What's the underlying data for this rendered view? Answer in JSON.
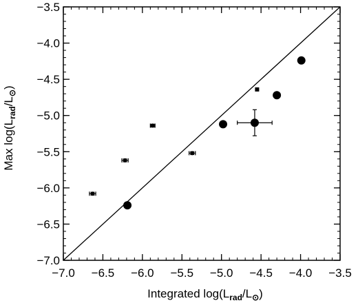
{
  "chart_data": {
    "type": "scatter",
    "xlabel": {
      "prefix": "Integrated log(L",
      "sub": "rad",
      "mid": "/L",
      "sun": "⊙",
      "suffix": ")"
    },
    "ylabel": {
      "prefix": "Max log(L",
      "sub": "rad",
      "mid": "/L",
      "sun": "⊙",
      "suffix": ")"
    },
    "xlim": [
      -7.0,
      -3.5
    ],
    "ylim": [
      -7.0,
      -3.5
    ],
    "x_ticks": [
      -7.0,
      -6.5,
      -6.0,
      -5.5,
      -5.0,
      -4.5,
      -4.0,
      -3.5
    ],
    "y_ticks": [
      -7.0,
      -6.5,
      -6.0,
      -5.5,
      -5.0,
      -4.5,
      -4.0,
      -3.5
    ],
    "x_tick_labels": [
      "−7.0",
      "−6.5",
      "−6.0",
      "−5.5",
      "−5.0",
      "−4.5",
      "−4.0",
      "−3.5"
    ],
    "y_tick_labels": [
      "−7.0",
      "−6.5",
      "−6.0",
      "−5.5",
      "−5.0",
      "−4.5",
      "−4.0",
      "−3.5"
    ],
    "grid": false,
    "reference_line": {
      "x": [
        -7.0,
        -3.5
      ],
      "y": [
        -7.0,
        -3.5
      ]
    },
    "points": [
      {
        "x": -6.63,
        "y": -6.08,
        "marker": "small",
        "xerr": 0.04,
        "yerr": 0.02
      },
      {
        "x": -6.22,
        "y": -5.62,
        "marker": "small",
        "xerr": 0.04,
        "yerr": 0.02
      },
      {
        "x": -5.87,
        "y": -5.14,
        "marker": "small",
        "xerr": 0.03,
        "yerr": 0.02
      },
      {
        "x": -5.37,
        "y": -5.52,
        "marker": "small",
        "xerr": 0.04,
        "yerr": 0.02
      },
      {
        "x": -4.55,
        "y": -4.64,
        "marker": "square",
        "xerr": 0,
        "yerr": 0
      },
      {
        "x": -6.19,
        "y": -6.24,
        "marker": "large",
        "xerr": 0,
        "yerr": 0
      },
      {
        "x": -4.98,
        "y": -5.12,
        "marker": "large",
        "xerr": 0,
        "yerr": 0
      },
      {
        "x": -4.58,
        "y": -5.1,
        "marker": "large",
        "xerr": 0.22,
        "yerr": 0.18
      },
      {
        "x": -4.3,
        "y": -4.72,
        "marker": "large",
        "xerr": 0,
        "yerr": 0
      },
      {
        "x": -3.99,
        "y": -4.24,
        "marker": "large",
        "xerr": 0,
        "yerr": 0
      }
    ]
  }
}
